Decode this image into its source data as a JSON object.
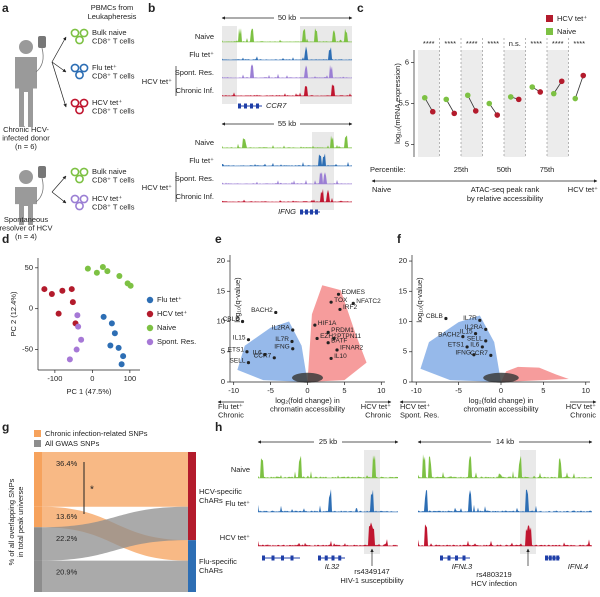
{
  "panel_a": {
    "letter": "a",
    "header": [
      "PBMCs from",
      "Leukapheresis"
    ],
    "donors": [
      {
        "name": [
          "Chronic HCV-",
          "infected donor"
        ],
        "n": "(n = 6)",
        "samples": [
          [
            "Bulk naive",
            "CD8⁺ T cells"
          ],
          [
            "Flu tet⁺",
            "CD8⁺ T cells"
          ],
          [
            "HCV tet⁺",
            "CD8⁺ T cells"
          ]
        ]
      },
      {
        "name": [
          "Spontaneous",
          "resolver of HCV"
        ],
        "n": "(n = 4)",
        "samples": [
          [
            "Bulk naive",
            "CD8⁺ T cells"
          ],
          [
            "HCV tet⁺",
            "CD8⁺ T cells"
          ]
        ]
      }
    ]
  },
  "panel_b": {
    "letter": "b",
    "group": "HCV tet⁺",
    "loci": [
      {
        "scale": "50 kb",
        "gene": "CCR7",
        "tracks": [
          "Naive",
          "Flu tet⁺",
          "Spont. Res.",
          "Chronic Inf."
        ]
      },
      {
        "scale": "55 kb",
        "gene": "IFNG",
        "tracks": [
          "Naive",
          "Flu tet⁺",
          "Spont. Res.",
          "Chronic Inf."
        ]
      }
    ]
  },
  "chart_data": [
    {
      "type": "dumbbell",
      "letter": "c",
      "ylabel": "log₁₀(mRNA expression)",
      "categories": [
        null,
        null,
        null,
        null,
        null,
        null,
        null,
        null
      ],
      "series": [
        {
          "name": "HCV tet⁺",
          "color": "#b31b2c",
          "values": [
            5.4,
            5.38,
            5.41,
            5.36,
            5.55,
            5.64,
            5.77,
            5.84
          ]
        },
        {
          "name": "Naive",
          "color": "#7dc143",
          "values": [
            5.57,
            5.55,
            5.6,
            5.5,
            5.58,
            5.7,
            5.62,
            5.56
          ]
        }
      ],
      "significance": [
        "****",
        "****",
        "****",
        "****",
        "n.s.",
        "****",
        "****",
        "****"
      ],
      "percentile_title": "Percentile:",
      "percentiles": [
        "25th",
        "50th",
        "75th"
      ],
      "xlabel": [
        "ATAC-seq peak rank",
        "by relative accessibility"
      ],
      "x_ends": [
        "Naive",
        "HCV tet⁺"
      ],
      "ylim": [
        4.85,
        6.15
      ],
      "yticks": [
        5,
        5.5,
        6
      ]
    },
    {
      "type": "scatter",
      "letter": "d",
      "xlabel": "PC 1 (47.5%)",
      "ylabel": "PC 2 (12.4%)",
      "xlim": [
        -145,
        127
      ],
      "ylim": [
        -75,
        62
      ],
      "xticks": [
        -100,
        0,
        100
      ],
      "yticks": [
        -50,
        0,
        50
      ],
      "series": [
        {
          "name": "Flu tet⁺",
          "color": "#2d6eb4",
          "x": [
            30,
            52,
            60,
            48,
            70,
            82,
            78
          ],
          "values": [
            -10,
            -18,
            -30,
            -45,
            -48,
            -58,
            -68
          ]
        },
        {
          "name": "HCV tet⁺",
          "color": "#b31b2c",
          "x": [
            -128,
            -108,
            -80,
            -55,
            -90,
            -52,
            -45
          ],
          "values": [
            24,
            18,
            22,
            24,
            -6,
            8,
            -18
          ]
        },
        {
          "name": "Naive",
          "color": "#7dc143",
          "x": [
            -12,
            12,
            28,
            40,
            72,
            94,
            102
          ],
          "values": [
            49,
            44,
            51,
            46,
            40,
            31,
            28
          ]
        },
        {
          "name": "Spont. Res.",
          "color": "#a678d6",
          "x": [
            -40,
            -38,
            -30,
            -42,
            -60
          ],
          "values": [
            -8,
            -22,
            -38,
            -50,
            -62
          ]
        }
      ]
    },
    {
      "type": "volcano",
      "letter": "e",
      "labels": [
        "CBLB",
        "BACH2",
        "IL15",
        "IL2RA",
        "IL7R",
        "ETS1",
        "IL6",
        "SELL",
        "CCR7",
        "IFNG",
        "EOMES",
        "TOX",
        "NFATC2",
        "IRF2",
        "HIF1A",
        "PRDM1",
        "EZH2",
        "BATF",
        "PTPN11",
        "IFNAR2",
        "IL10"
      ],
      "x": [
        -8.8,
        -4.3,
        -8.0,
        -2.0,
        -2.1,
        -8.2,
        -5.8,
        -8.0,
        -4.5,
        -2.0,
        4.2,
        3.2,
        6.2,
        4.4,
        1.0,
        2.8,
        1.3,
        2.8,
        3.6,
        4.0,
        3.2
      ],
      "values": [
        10,
        11.5,
        7,
        8.6,
        6.7,
        5,
        4.5,
        3.2,
        4,
        5.5,
        14.5,
        13.2,
        13.0,
        12,
        9.4,
        8.2,
        7.2,
        6.5,
        7.2,
        5.3,
        3.9
      ],
      "xlim": [
        -10.5,
        10.5
      ],
      "ylim": [
        0,
        21
      ],
      "xticks": [
        -10,
        -5,
        0,
        5,
        10
      ],
      "yticks": [
        0,
        5,
        10,
        15,
        20
      ],
      "xlabel": [
        "log₂(fold change) in",
        "chromatin accessibility"
      ],
      "ylabel": "log₁₀(q-value)",
      "left_label": [
        "Flu tet⁺",
        "Chronic"
      ],
      "right_label": [
        "HCV tet⁺",
        "Chronic"
      ],
      "colors": [
        "#3f7fd9",
        "#ee4b4b"
      ]
    },
    {
      "type": "volcano",
      "letter": "f",
      "labels": [
        "CBLB",
        "IL7R",
        "IL2RA",
        "BACH2",
        "IL15",
        "SELL",
        "ETS1",
        "IL6",
        "IFNG",
        "CCR7"
      ],
      "x": [
        -6.5,
        -2.5,
        -1.8,
        -4.5,
        -3.0,
        -1.8,
        -4.0,
        -2.2,
        -3.2,
        -1.2
      ],
      "values": [
        10.5,
        10.2,
        8.7,
        7.5,
        8.0,
        6.8,
        5.8,
        5.8,
        4.5,
        4.4
      ],
      "xlim": [
        -10.5,
        10.5
      ],
      "ylim": [
        0,
        21
      ],
      "xticks": [
        -10,
        -5,
        0,
        5,
        10
      ],
      "yticks": [
        0,
        5,
        10,
        15,
        20
      ],
      "xlabel": [
        "log₂(fold change) in",
        "chromatin accessibility"
      ],
      "ylabel": "log₁₀(q-value)",
      "left_label": [
        "HCV tet⁺",
        "Spont. Res."
      ],
      "right_label": [
        "HCV tet⁺",
        "Chronic"
      ],
      "colors": [
        "#3f7fd9",
        "#ee4b4b"
      ]
    },
    {
      "type": "sankey",
      "letter": "g",
      "ylabel": [
        "% of all overlapping SNPs",
        "in total peak universe"
      ],
      "categories": [
        "HCV-specific ChARs",
        "Flu-specific ChARs"
      ],
      "target_colors": [
        "#b31b2c",
        "#2d6eb4"
      ],
      "series": [
        {
          "name": "Chronic infection-related SNPs",
          "color": "#f6a25c",
          "values": [
            36.4,
            13.6
          ],
          "value_labels": [
            "36.4%",
            "13.6%"
          ]
        },
        {
          "name": "All GWAS SNPs",
          "color": "#8d8d8d",
          "values": [
            22.2,
            20.9
          ],
          "value_labels": [
            "22.2%",
            "20.9%"
          ]
        }
      ],
      "significance": "*"
    }
  ],
  "panel_h": {
    "letter": "h",
    "tracks": [
      "Naive",
      "Flu tet⁺",
      "HCV tet⁺"
    ],
    "loci": [
      {
        "scale": "25 kb",
        "genes": [
          "IL32"
        ],
        "snp": "rs4349147",
        "trait": "HIV-1 susceptibility"
      },
      {
        "scale": "14 kb",
        "genes": [
          "IFNL3",
          "IFNL4"
        ],
        "snp": "rs4803219",
        "trait": "HCV infection"
      }
    ]
  }
}
